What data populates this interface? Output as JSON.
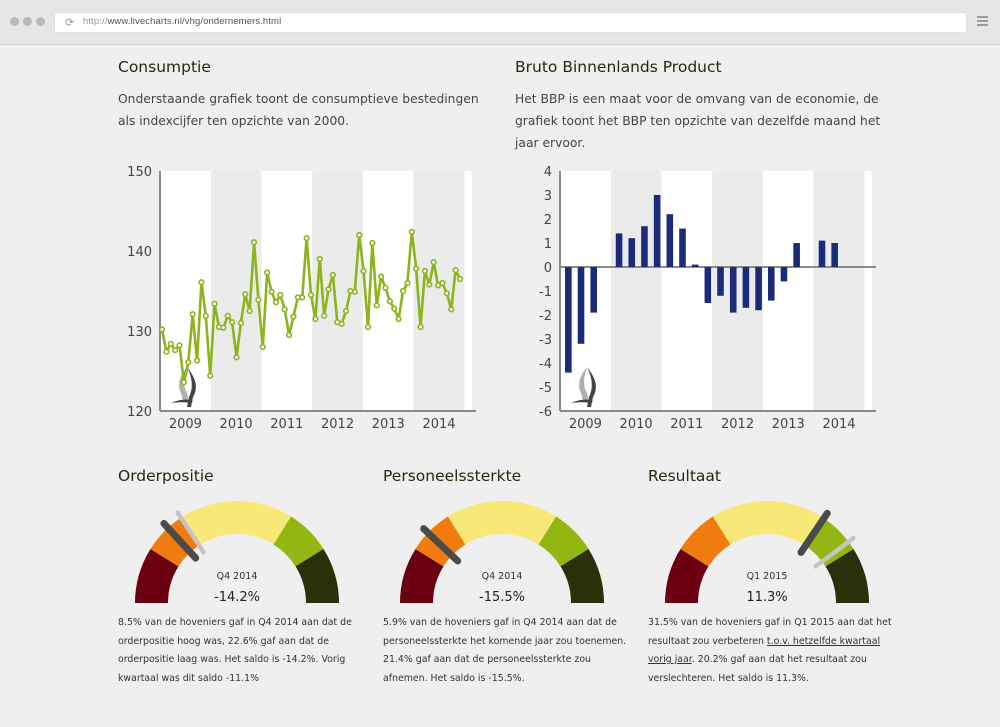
{
  "browser": {
    "url_protocol": "http://",
    "url_rest": "www.livecharts.nl/vhg/ondernemers.html"
  },
  "consumptie": {
    "title": "Consumptie",
    "description": "Onderstaande grafiek toont de consumptieve bestedingen als indexcijfer ten opzichte van 2000."
  },
  "bbp": {
    "title": "Bruto Binnenlands Product",
    "description": "Het BBP is een maat voor de omvang van de economie, de grafiek toont het BBP ten opzichte van dezelfde maand het jaar ervoor."
  },
  "chart_data": [
    {
      "type": "line",
      "name": "consumptie",
      "title": "",
      "xlabel": "",
      "ylabel": "",
      "ylim": [
        120,
        150
      ],
      "yticks": [
        "120",
        "130",
        "140",
        "150"
      ],
      "categories": [
        "2009",
        "2010",
        "2011",
        "2012",
        "2013",
        "2014"
      ],
      "points_per_year": 12,
      "color": "#8db41c",
      "values": [
        130.2,
        127.4,
        128.4,
        127.6,
        128.2,
        123.6,
        126.1,
        132.1,
        126.3,
        136.1,
        131.9,
        124.4,
        133.4,
        130.5,
        130.4,
        131.9,
        131.1,
        126.7,
        131.0,
        134.6,
        132.5,
        141.1,
        133.9,
        128.0,
        137.3,
        134.9,
        133.6,
        134.5,
        132.7,
        129.5,
        131.8,
        134.2,
        134.2,
        141.6,
        134.5,
        131.5,
        139.0,
        131.9,
        135.2,
        137.0,
        131.1,
        130.9,
        132.5,
        135.0,
        134.9,
        142.0,
        137.5,
        130.5,
        141.0,
        133.2,
        136.8,
        135.4,
        133.7,
        132.8,
        131.5,
        135.0,
        136.0,
        142.4,
        137.8,
        130.5,
        137.5,
        135.8,
        138.6,
        135.7,
        136.0,
        134.7,
        132.7,
        137.6,
        136.5
      ],
      "grid": false,
      "alternating_year_bands": true
    },
    {
      "type": "bar",
      "name": "bbp",
      "title": "",
      "xlabel": "",
      "ylabel": "",
      "ylim": [
        -6,
        4
      ],
      "yticks": [
        "-6",
        "-5",
        "-4",
        "-3",
        "-2",
        "-1",
        "0",
        "1",
        "2",
        "3",
        "4"
      ],
      "categories": [
        "2009",
        "2010",
        "2011",
        "2012",
        "2013",
        "2014"
      ],
      "points_per_year": 4,
      "color": "#1c2b78",
      "values": [
        -4.4,
        -3.2,
        -1.9,
        null,
        1.4,
        1.2,
        1.7,
        3.0,
        2.2,
        1.6,
        0.1,
        -1.5,
        -1.2,
        -1.9,
        -1.7,
        -1.8,
        -1.4,
        -0.6,
        1.0,
        null,
        1.1,
        1.0,
        null,
        null
      ],
      "grid": false,
      "alternating_year_bands": true
    }
  ],
  "gauges": [
    {
      "title": "Orderpositie",
      "period": "Q4 2014",
      "value_label": "-14.2%",
      "value": -14.2,
      "previous_value": -11.1,
      "range": [
        -30,
        30
      ],
      "text_parts": [
        "8.5% van de hoveniers gaf in Q4 2014 aan dat de orderpositie hoog was, 22.6% gaf aan dat de orderpositie laag was. Het saldo is -14.2%. Vorig kwartaal was dit saldo -11.1%"
      ],
      "link": "",
      "text_after_link": ""
    },
    {
      "title": "Personeelssterkte",
      "period": "Q4 2014",
      "value_label": "-15.5%",
      "value": -15.5,
      "previous_value": null,
      "range": [
        -30,
        30
      ],
      "text_parts": [
        "5.9% van de hoveniers gaf in Q4 2014 aan dat de personeelssterkte het komende jaar zou toenemen. 21.4% gaf aan dat de personeelssterkte zou afnemen. Het saldo is -15.5%."
      ],
      "link": "",
      "text_after_link": ""
    },
    {
      "title": "Resultaat",
      "period": "Q1 2015",
      "value_label": "11.3%",
      "value": 11.3,
      "previous_value": 17.7,
      "range": [
        -30,
        30
      ],
      "text_parts": [
        "31.5% van de hoveniers gaf in Q1 2015 aan dat het resultaat zou verbeteren "
      ],
      "link": "t.o.v. hetzelfde kwartaal vorig jaar",
      "text_after_link": ". 20.2% gaf aan dat het resultaat zou verslechteren. Het saldo is 11.3%."
    }
  ],
  "gauge_colors": [
    "#6b0010",
    "#f07c10",
    "#f8e878",
    "#92b612",
    "#2c300a"
  ],
  "needle_color": "#4a4a4a",
  "previous_needle_color": "#c4c4c4"
}
